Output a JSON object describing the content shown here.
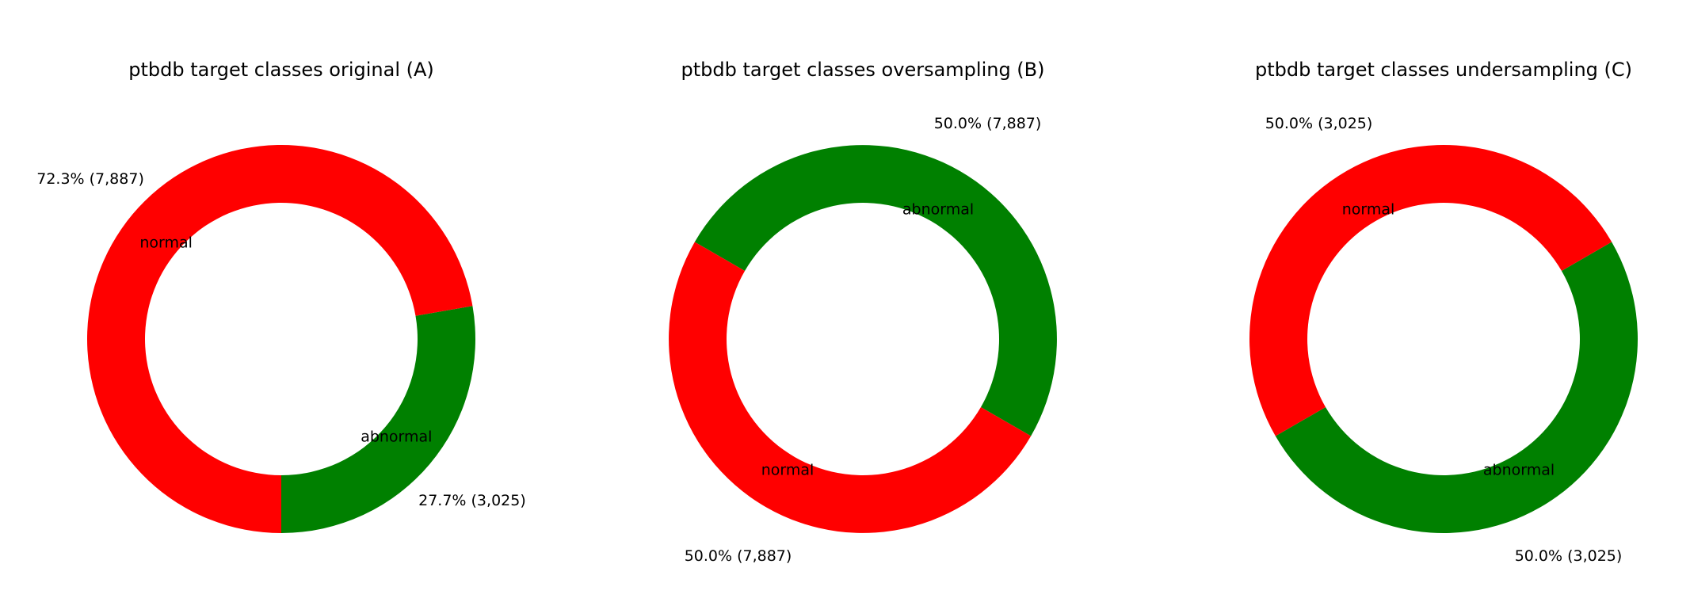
{
  "chart_data": [
    {
      "type": "pie",
      "title": "ptbdb target classes original (A)",
      "categories": [
        "abnormal",
        "normal"
      ],
      "values": [
        3025,
        7887
      ],
      "percent_labels": [
        "27.7% (3,025)",
        "72.3% (7,887)"
      ],
      "colors": [
        "#008000",
        "#ff0000"
      ],
      "donut": true,
      "start_angle_deg": -90
    },
    {
      "type": "pie",
      "title": "ptbdb target classes oversampling (B)",
      "categories": [
        "abnormal",
        "normal"
      ],
      "values": [
        7887,
        7887
      ],
      "percent_labels": [
        "50.0% (7,887)",
        "50.0% (7,887)"
      ],
      "colors": [
        "#008000",
        "#ff0000"
      ],
      "donut": true,
      "start_angle_deg": -30
    },
    {
      "type": "pie",
      "title": "ptbdb target classes undersampling (C)",
      "categories": [
        "abnormal",
        "normal"
      ],
      "values": [
        3025,
        3025
      ],
      "percent_labels": [
        "50.0% (3,025)",
        "50.0% (3,025)"
      ],
      "colors": [
        "#008000",
        "#ff0000"
      ],
      "donut": true,
      "start_angle_deg": -150
    }
  ]
}
